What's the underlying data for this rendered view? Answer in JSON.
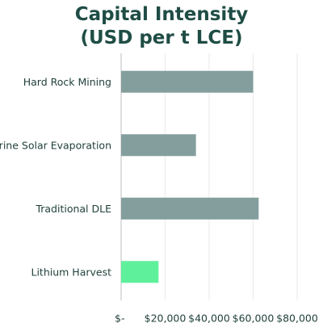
{
  "chart_data": {
    "type": "bar",
    "orientation": "horizontal",
    "title": [
      "Capital Intensity",
      "(USD per t LCE)"
    ],
    "categories": [
      "Hard Rock Mining",
      "Brine Solar Evaporation",
      "Traditional DLE",
      "Lithium Harvest"
    ],
    "values": [
      60000,
      34000,
      62500,
      17000
    ],
    "bar_colors": [
      "#849e9d",
      "#849e9d",
      "#849e9d",
      "#5ef09b"
    ],
    "xlim": [
      0,
      80000
    ],
    "xticks": [
      0,
      20000,
      40000,
      60000,
      80000
    ],
    "xtick_labels": [
      "$-",
      "$20,000",
      "$40,000",
      "$60,000",
      "$80,000"
    ],
    "grid": "vertical",
    "gridline_color": "#eaeaea",
    "axis_color": "#bcbcbc",
    "legend": "none"
  }
}
